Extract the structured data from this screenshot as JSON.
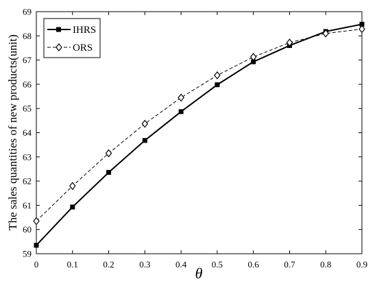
{
  "chart_data": {
    "type": "line",
    "title": "",
    "xlabel": "θ",
    "ylabel": "The sales quantities of new products(unit)",
    "x": [
      0,
      0.1,
      0.2,
      0.3,
      0.4,
      0.5,
      0.6,
      0.7,
      0.8,
      0.9
    ],
    "x_tick_labels": [
      "0",
      "0.1",
      "0.2",
      "0.3",
      "0.4",
      "0.5",
      "0.6",
      "0.7",
      "0.8",
      "0.9"
    ],
    "y_tick_labels": [
      "59",
      "60",
      "61",
      "62",
      "63",
      "64",
      "65",
      "66",
      "67",
      "68",
      "69"
    ],
    "xlim": [
      0,
      0.9
    ],
    "ylim": [
      59,
      69
    ],
    "grid": false,
    "legend_position": "top-left",
    "series": [
      {
        "name": "IHRS",
        "values": [
          59.35,
          60.93,
          62.36,
          63.68,
          64.87,
          65.98,
          66.93,
          67.6,
          68.18,
          68.48
        ],
        "color": "#000000",
        "line_style": "solid",
        "marker": "filled-square"
      },
      {
        "name": "ORS",
        "values": [
          60.35,
          61.8,
          63.15,
          64.37,
          65.45,
          66.37,
          67.13,
          67.72,
          68.1,
          68.28
        ],
        "color": "#000000",
        "line_style": "dashed",
        "marker": "open-diamond"
      }
    ]
  }
}
